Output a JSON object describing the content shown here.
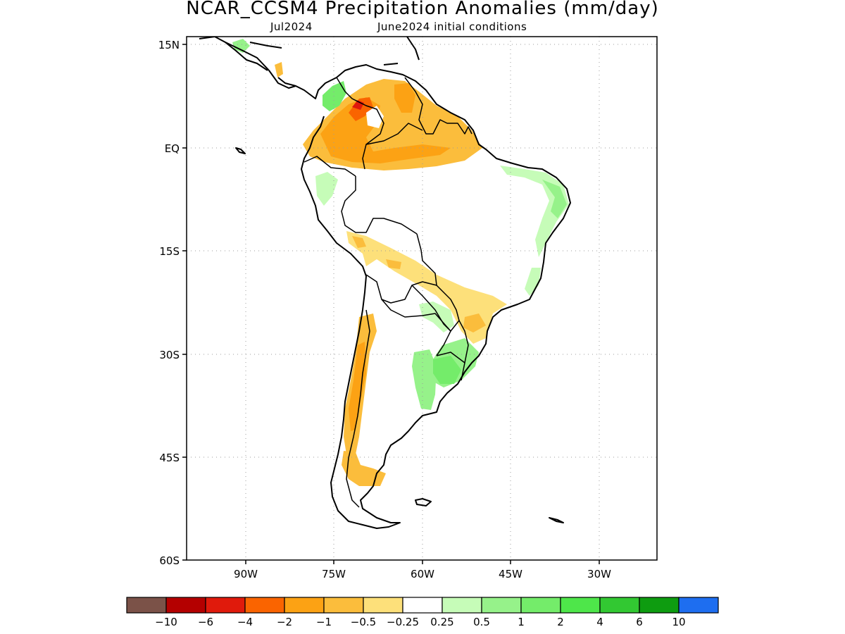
{
  "header": {
    "title": "NCAR_CCSM4 Precipitation Anomalies (mm/day)",
    "subtitle_left": "Jul2024",
    "subtitle_right": "June2024 initial conditions"
  },
  "axes": {
    "lat_labels": [
      "15N",
      "EQ",
      "15S",
      "30S",
      "45S",
      "60S"
    ],
    "lon_labels": [
      "90W",
      "75W",
      "60W",
      "45W",
      "30W"
    ]
  },
  "colorbar": {
    "colors": [
      "#7b5248",
      "#b40000",
      "#e01a0c",
      "#fa6400",
      "#fca214",
      "#fbbd3c",
      "#fde07a",
      "#ffffff",
      "#c6fcb8",
      "#96f28a",
      "#74ec6a",
      "#4ee64a",
      "#32c832",
      "#0e9c10",
      "#1e6ef0"
    ],
    "labels": [
      "−10",
      "−6",
      "−4",
      "−2",
      "−1",
      "−0.5",
      "−0.25",
      "0.25",
      "0.5",
      "1",
      "2",
      "4",
      "6",
      "10"
    ]
  }
}
